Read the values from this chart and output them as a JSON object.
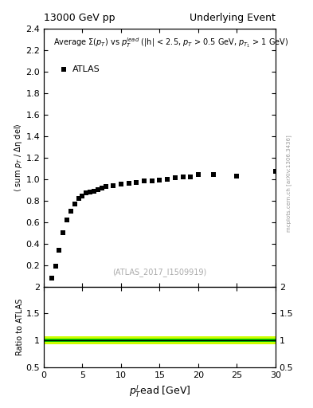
{
  "title_left": "13000 GeV pp",
  "title_right": "Underlying Event",
  "legend_label": "ATLAS",
  "annotation": "(ATLAS_2017_I1509919)",
  "xlabel": "$p_T^l$ead [GeV]",
  "ylabel_main": "⟨ sum $p_T$ / Δη del⟩",
  "ylabel_ratio": "Ratio to ATLAS",
  "watermark": "mcplots.cern.ch [arXiv:1306.3436]",
  "xlim": [
    0,
    30
  ],
  "ylim_main": [
    0,
    2.4
  ],
  "ylim_ratio": [
    0.5,
    2.0
  ],
  "yticks_main": [
    0.2,
    0.4,
    0.6,
    0.8,
    1.0,
    1.2,
    1.4,
    1.6,
    1.8,
    2.0,
    2.2,
    2.4
  ],
  "yticks_ratio": [
    0.5,
    1.0,
    1.5,
    2.0
  ],
  "data_x": [
    1.0,
    1.5,
    2.0,
    2.5,
    3.0,
    3.5,
    4.0,
    4.5,
    5.0,
    5.5,
    6.0,
    6.5,
    7.0,
    7.5,
    8.0,
    9.0,
    10.0,
    11.0,
    12.0,
    13.0,
    14.0,
    15.0,
    16.0,
    17.0,
    18.0,
    19.0,
    20.0,
    22.0,
    25.0,
    30.0
  ],
  "data_y": [
    0.08,
    0.19,
    0.34,
    0.5,
    0.62,
    0.7,
    0.77,
    0.82,
    0.84,
    0.87,
    0.88,
    0.89,
    0.9,
    0.92,
    0.93,
    0.94,
    0.95,
    0.96,
    0.97,
    0.98,
    0.98,
    0.99,
    1.0,
    1.01,
    1.02,
    1.02,
    1.04,
    1.04,
    1.03,
    1.07
  ],
  "data_color": "#000000",
  "marker": "s",
  "marker_size": 4,
  "ratio_band_green_half": 0.03,
  "ratio_band_yellow_half": 0.07,
  "ratio_line_y": 1.0,
  "band_green_color": "#00bb00",
  "band_yellow_color": "#ccff00",
  "ratio_line_color": "#000000",
  "bg_color": "#ffffff",
  "tick_direction": "in",
  "annotation_color": "#aaaaaa",
  "annotation_size": 7,
  "watermark_color": "#999999",
  "header_fontsize": 9,
  "legend_text_fontsize": 8,
  "annot_text_fontsize": 7,
  "ylabel_main_fontsize": 7,
  "ylabel_ratio_fontsize": 7,
  "xlabel_fontsize": 9
}
